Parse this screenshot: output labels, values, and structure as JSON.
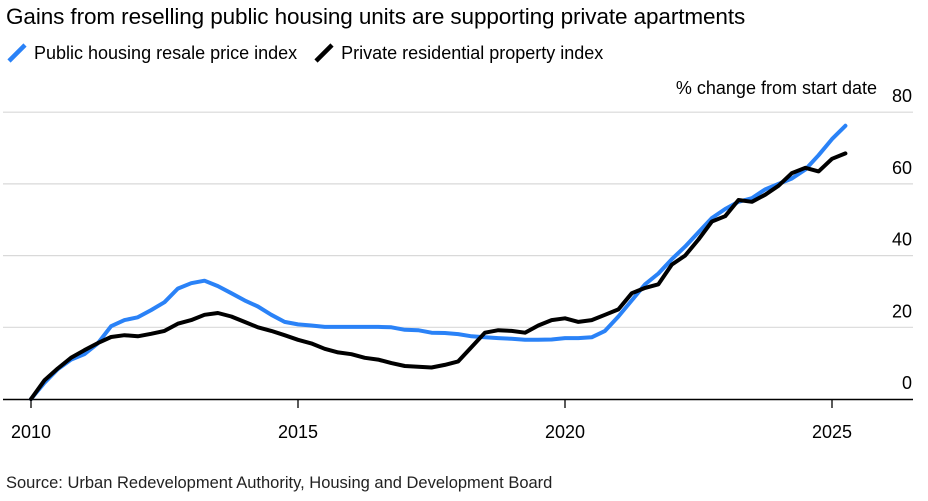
{
  "title": "Gains from reselling public housing units are supporting private apartments",
  "unit_label": "% change from start date",
  "source": "Source: Urban Redevelopment Authority, Housing and Development Board",
  "colors": {
    "public": "#2a82f7",
    "private": "#000000",
    "grid": "#d9d9d9",
    "axis": "#000000"
  },
  "chart_data": {
    "type": "line",
    "title": "Gains from reselling public housing units are supporting private apartments",
    "ylabel": "% change from start date",
    "xlim": [
      2009.9,
      2025.8
    ],
    "ylim": [
      -5,
      80
    ],
    "yticks": [
      0,
      20,
      40,
      60,
      80
    ],
    "xticks": [
      2010,
      2015,
      2020,
      2025
    ],
    "x_tick_labels": [
      "2010",
      "2015",
      "2020",
      "2025"
    ],
    "y_tick_labels": [
      "0",
      "20",
      "40",
      "60",
      "80"
    ],
    "grid": true,
    "legend_position": "top-left",
    "series": [
      {
        "name": "Public housing resale price index",
        "color": "#2a82f7",
        "points": [
          [
            2010.0,
            0.0
          ],
          [
            2010.25,
            4.5
          ],
          [
            2010.5,
            8.3
          ],
          [
            2010.75,
            11.0
          ],
          [
            2011.0,
            12.5
          ],
          [
            2011.25,
            15.5
          ],
          [
            2011.5,
            20.3
          ],
          [
            2011.75,
            22.0
          ],
          [
            2012.0,
            22.8
          ],
          [
            2012.25,
            24.8
          ],
          [
            2012.5,
            27.0
          ],
          [
            2012.75,
            30.8
          ],
          [
            2013.0,
            32.3
          ],
          [
            2013.25,
            33.0
          ],
          [
            2013.5,
            31.5
          ],
          [
            2013.75,
            29.5
          ],
          [
            2014.0,
            27.5
          ],
          [
            2014.25,
            25.8
          ],
          [
            2014.5,
            23.5
          ],
          [
            2014.75,
            21.5
          ],
          [
            2015.0,
            20.8
          ],
          [
            2015.25,
            20.5
          ],
          [
            2015.5,
            20.1
          ],
          [
            2015.75,
            20.1
          ],
          [
            2016.0,
            20.1
          ],
          [
            2016.25,
            20.1
          ],
          [
            2016.5,
            20.1
          ],
          [
            2016.75,
            20.0
          ],
          [
            2017.0,
            19.3
          ],
          [
            2017.25,
            19.2
          ],
          [
            2017.5,
            18.5
          ],
          [
            2017.75,
            18.4
          ],
          [
            2018.0,
            18.1
          ],
          [
            2018.25,
            17.5
          ],
          [
            2018.5,
            17.2
          ],
          [
            2018.75,
            17.0
          ],
          [
            2019.0,
            16.8
          ],
          [
            2019.25,
            16.5
          ],
          [
            2019.5,
            16.5
          ],
          [
            2019.75,
            16.6
          ],
          [
            2020.0,
            17.0
          ],
          [
            2020.25,
            17.0
          ],
          [
            2020.5,
            17.2
          ],
          [
            2020.75,
            19.0
          ],
          [
            2021.0,
            23.0
          ],
          [
            2021.25,
            27.5
          ],
          [
            2021.5,
            32.0
          ],
          [
            2021.75,
            35.0
          ],
          [
            2022.0,
            39.0
          ],
          [
            2022.25,
            42.5
          ],
          [
            2022.5,
            46.5
          ],
          [
            2022.75,
            50.5
          ],
          [
            2023.0,
            53.0
          ],
          [
            2023.25,
            55.0
          ],
          [
            2023.5,
            56.0
          ],
          [
            2023.75,
            58.5
          ],
          [
            2024.0,
            60.0
          ],
          [
            2024.25,
            61.5
          ],
          [
            2024.5,
            64.0
          ],
          [
            2024.75,
            68.0
          ],
          [
            2025.0,
            72.5
          ],
          [
            2025.25,
            76.2
          ]
        ]
      },
      {
        "name": "Private residential property index",
        "color": "#000000",
        "points": [
          [
            2010.0,
            0.0
          ],
          [
            2010.25,
            5.2
          ],
          [
            2010.5,
            8.5
          ],
          [
            2010.75,
            11.5
          ],
          [
            2011.0,
            13.6
          ],
          [
            2011.25,
            15.6
          ],
          [
            2011.5,
            17.3
          ],
          [
            2011.75,
            17.8
          ],
          [
            2012.0,
            17.5
          ],
          [
            2012.25,
            18.2
          ],
          [
            2012.5,
            19.0
          ],
          [
            2012.75,
            21.0
          ],
          [
            2013.0,
            22.0
          ],
          [
            2013.25,
            23.5
          ],
          [
            2013.5,
            24.0
          ],
          [
            2013.75,
            23.0
          ],
          [
            2014.0,
            21.5
          ],
          [
            2014.25,
            20.0
          ],
          [
            2014.5,
            19.0
          ],
          [
            2014.75,
            17.8
          ],
          [
            2015.0,
            16.5
          ],
          [
            2015.25,
            15.5
          ],
          [
            2015.5,
            14.0
          ],
          [
            2015.75,
            13.0
          ],
          [
            2016.0,
            12.5
          ],
          [
            2016.25,
            11.5
          ],
          [
            2016.5,
            11.0
          ],
          [
            2016.75,
            10.0
          ],
          [
            2017.0,
            9.2
          ],
          [
            2017.25,
            9.0
          ],
          [
            2017.5,
            8.8
          ],
          [
            2017.75,
            9.5
          ],
          [
            2018.0,
            10.5
          ],
          [
            2018.25,
            14.5
          ],
          [
            2018.5,
            18.5
          ],
          [
            2018.75,
            19.2
          ],
          [
            2019.0,
            19.0
          ],
          [
            2019.25,
            18.5
          ],
          [
            2019.5,
            20.5
          ],
          [
            2019.75,
            22.0
          ],
          [
            2020.0,
            22.5
          ],
          [
            2020.25,
            21.5
          ],
          [
            2020.5,
            22.0
          ],
          [
            2020.75,
            23.5
          ],
          [
            2021.0,
            25.0
          ],
          [
            2021.25,
            29.5
          ],
          [
            2021.5,
            31.0
          ],
          [
            2021.75,
            32.0
          ],
          [
            2022.0,
            37.5
          ],
          [
            2022.25,
            40.0
          ],
          [
            2022.5,
            44.5
          ],
          [
            2022.75,
            49.5
          ],
          [
            2023.0,
            51.0
          ],
          [
            2023.25,
            55.5
          ],
          [
            2023.5,
            55.0
          ],
          [
            2023.75,
            57.0
          ],
          [
            2024.0,
            59.5
          ],
          [
            2024.25,
            63.0
          ],
          [
            2024.5,
            64.5
          ],
          [
            2024.75,
            63.5
          ],
          [
            2025.0,
            67.0
          ],
          [
            2025.25,
            68.5
          ]
        ]
      }
    ]
  }
}
